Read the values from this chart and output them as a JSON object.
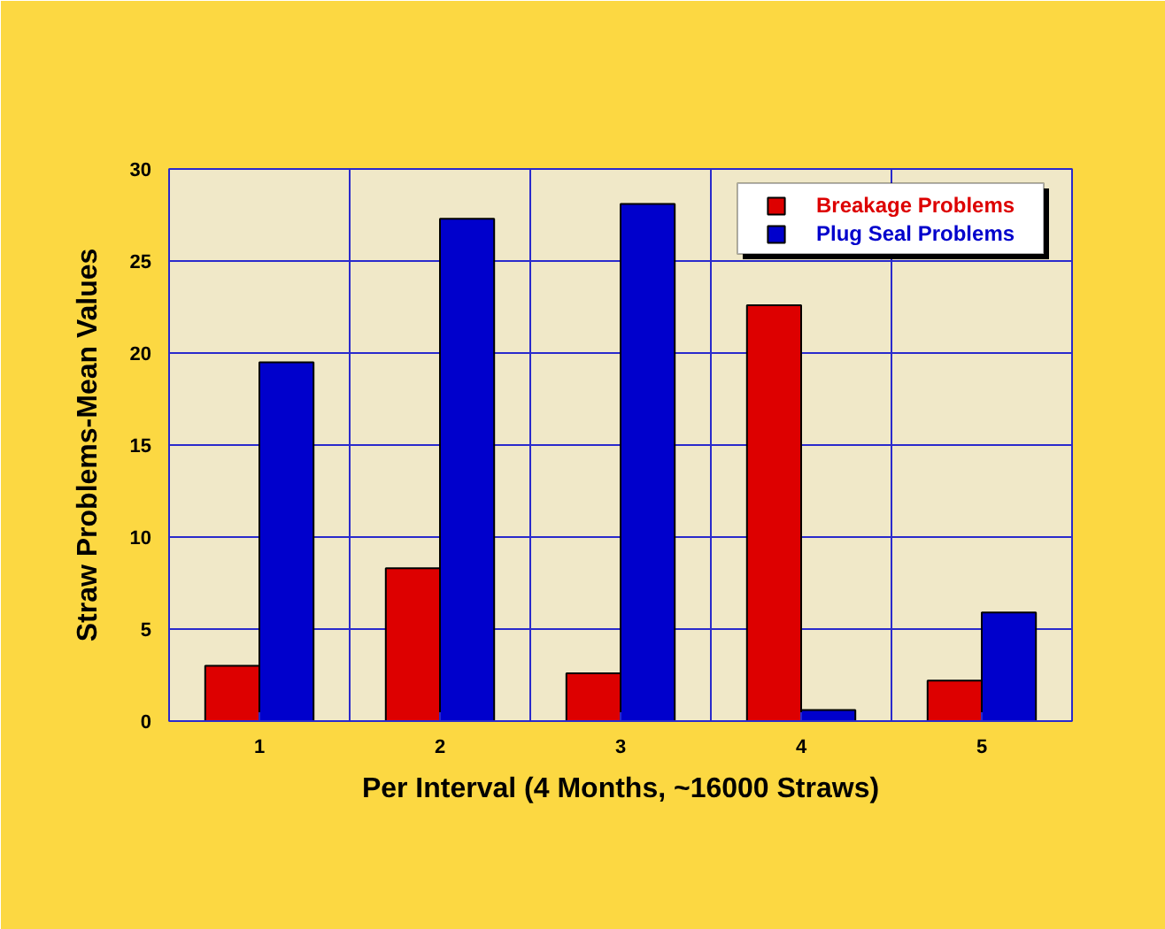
{
  "chart_data": {
    "type": "bar",
    "xlabel": "Per Interval (4 Months, ~16000 Straws)",
    "ylabel": "Straw Problems-Mean Values",
    "categories": [
      "1",
      "2",
      "3",
      "4",
      "5"
    ],
    "series": [
      {
        "name": "Breakage Problems",
        "color": "#dd0000",
        "values": [
          3.0,
          8.3,
          2.6,
          22.6,
          2.2
        ]
      },
      {
        "name": "Plug Seal Problems",
        "color": "#0000cc",
        "values": [
          19.5,
          27.3,
          28.1,
          0.6,
          5.9
        ]
      }
    ],
    "ylim": [
      0,
      30
    ],
    "yticks": [
      0,
      5,
      10,
      15,
      20,
      25,
      30
    ],
    "grid": true,
    "legend": "top right"
  }
}
